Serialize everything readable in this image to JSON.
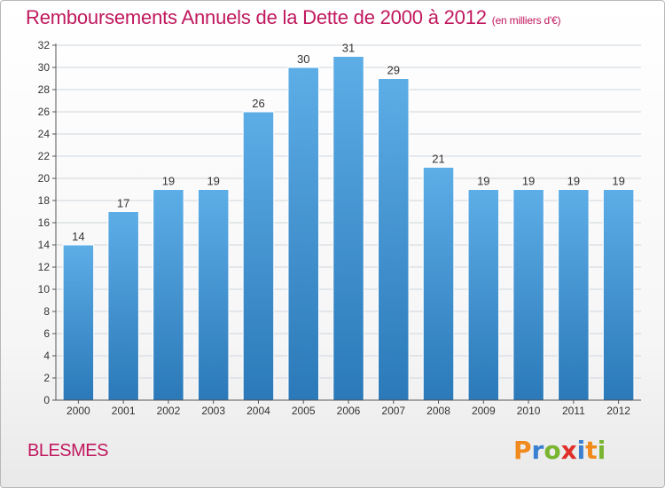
{
  "title": "Remboursements Annuels de la Dette de 2000 à 2012",
  "subtitle": "(en milliers d'€)",
  "commune": "BLESMES",
  "logo": {
    "letters": [
      "P",
      "r",
      "o",
      "x",
      "i",
      "t",
      "i"
    ],
    "colors": [
      "#f08a1c",
      "#3a7fd0",
      "#79b530",
      "#e0302a",
      "#3a7fd0",
      "#f08a1c",
      "#79b530"
    ]
  },
  "colors": {
    "title": "#c0185e",
    "bar_top": "#5dade7",
    "bar_bottom": "#2b79b8",
    "grid": "#cfd6dc",
    "axis_text": "#333333"
  },
  "chart_data": {
    "type": "bar",
    "categories": [
      "2000",
      "2001",
      "2002",
      "2003",
      "2004",
      "2005",
      "2006",
      "2007",
      "2008",
      "2009",
      "2010",
      "2011",
      "2012"
    ],
    "values": [
      14,
      17,
      19,
      19,
      26,
      30,
      31,
      29,
      21,
      19,
      19,
      19,
      19
    ],
    "ylim": [
      0,
      32
    ],
    "yticks": [
      0,
      2,
      4,
      6,
      8,
      10,
      12,
      14,
      16,
      18,
      20,
      22,
      24,
      26,
      28,
      30,
      32
    ],
    "grid": true,
    "data_labels": true
  }
}
